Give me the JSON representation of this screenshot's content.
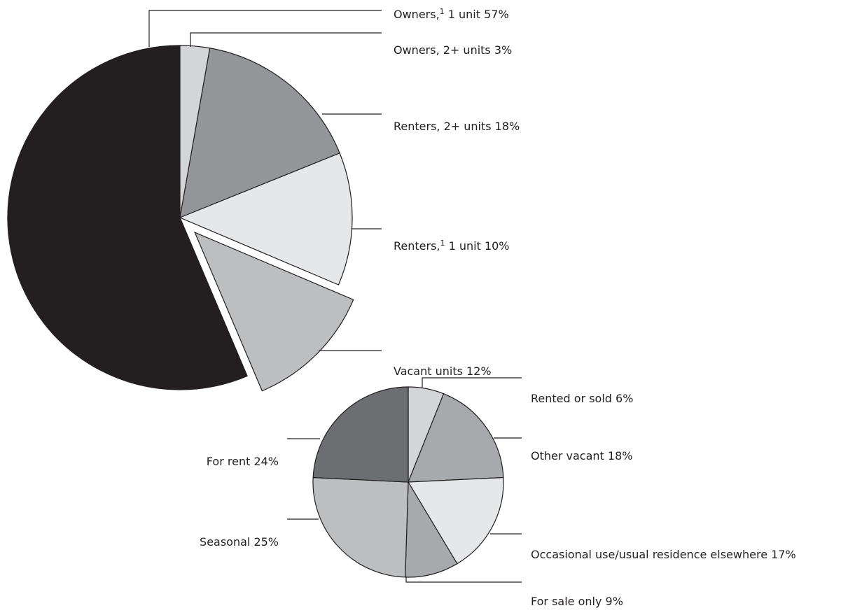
{
  "chart_data": [
    {
      "type": "pie",
      "name": "housing-units",
      "slices": [
        {
          "label": "Owners,",
          "sup": "1",
          "rest": " 1 unit 57%",
          "value": 57,
          "color": "#231f20"
        },
        {
          "label": "Owners, 2+ units 3%",
          "value": 3,
          "color": "#d4d5d7"
        },
        {
          "label": "Renters, 2+ units 18%",
          "value": 18,
          "color": "#939598"
        },
        {
          "label": "Renters,",
          "sup": "1",
          "rest": " 1 unit 10%",
          "value": 10,
          "color": "#e6e7e8"
        },
        {
          "label": "Vacant units 12%",
          "value": 12,
          "color": "#bcbec0",
          "exploded": true
        }
      ]
    },
    {
      "type": "pie",
      "name": "vacant-units",
      "slices": [
        {
          "label": "Rented or sold 6%",
          "value": 6,
          "color": "#d4d5d7"
        },
        {
          "label": "Other vacant 18%",
          "value": 18,
          "color": "#a7a9ac"
        },
        {
          "label": "Occasional use/usual residence elsewhere 17%",
          "value": 17,
          "color": "#e6e7e8"
        },
        {
          "label": "For sale only 9%",
          "value": 9,
          "color": "#a7a9ac"
        },
        {
          "label": "Seasonal 25%",
          "value": 25,
          "color": "#bcbec0"
        },
        {
          "label": "For rent 24%",
          "value": 24,
          "color": "#6d6e71"
        }
      ]
    }
  ]
}
